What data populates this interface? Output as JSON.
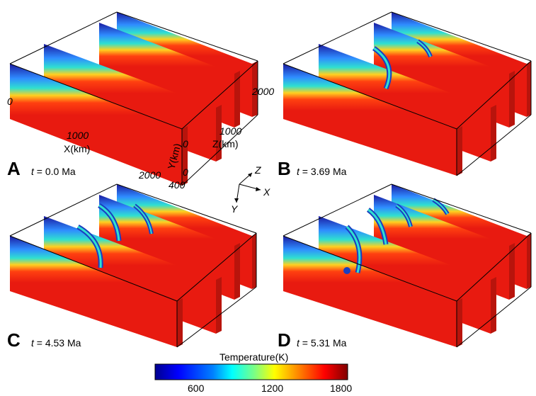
{
  "panels": [
    {
      "letter": "A",
      "t_symbol": "t",
      "time_text": " = 0.0 Ma"
    },
    {
      "letter": "B",
      "t_symbol": "t",
      "time_text": " = 3.69 Ma"
    },
    {
      "letter": "C",
      "t_symbol": "t",
      "time_text": " = 4.53 Ma"
    },
    {
      "letter": "D",
      "t_symbol": "t",
      "time_text": " = 5.31 Ma"
    }
  ],
  "axes": {
    "x_label": "X(km)",
    "y_label": "Y(km)",
    "z_label": "Z(km)",
    "x_ticks": [
      "0",
      "1000",
      "2000"
    ],
    "z_ticks": [
      "0",
      "1000",
      "2000"
    ],
    "y_ticks": [
      "0",
      "400"
    ]
  },
  "orientation": {
    "z": "Z",
    "x": "X",
    "y": "Y"
  },
  "colorbar": {
    "title": "Temperature(K)",
    "ticks": [
      "600",
      "1200",
      "1800"
    ],
    "min": 300,
    "max": 1800,
    "colors": [
      "#00008f",
      "#0000ff",
      "#0080ff",
      "#00ffff",
      "#80ff80",
      "#ffff00",
      "#ff8000",
      "#ff0000",
      "#800000"
    ]
  }
}
